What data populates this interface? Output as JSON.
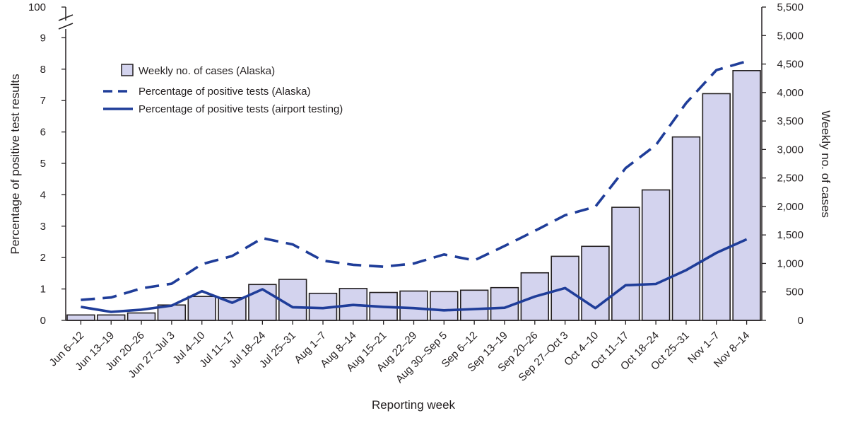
{
  "chart_data": {
    "type": "bar",
    "categories": [
      "Jun 6–12",
      "Jun 13–19",
      "Jun 20–26",
      "Jun 27–Jul 3",
      "Jul 4–10",
      "Jul 11–17",
      "Jul 18–24",
      "Jul 25–31",
      "Aug 1–7",
      "Aug 8–14",
      "Aug 15–21",
      "Aug 22–29",
      "Aug 30–Sep 5",
      "Sep 6–12",
      "Sep 13–19",
      "Sep 20–26",
      "Sep 27–Oct 3",
      "Oct 4–10",
      "Oct 11–17",
      "Oct 18–24",
      "Oct 25–31",
      "Nov 1–7",
      "Nov 8–14"
    ],
    "series": [
      {
        "name": "Weekly no. of cases (Alaska)",
        "type": "bar",
        "axis": "right",
        "color": "#d3d3ee",
        "values": [
          95,
          95,
          130,
          270,
          420,
          400,
          630,
          720,
          475,
          560,
          490,
          515,
          505,
          530,
          575,
          835,
          1125,
          1300,
          1985,
          2290,
          3220,
          3980,
          4385
        ]
      },
      {
        "name": "Percentage of positive tests (Alaska)",
        "type": "line",
        "style": "dashed",
        "axis": "left",
        "color": "#1f3d99",
        "values": [
          0.65,
          0.73,
          1.02,
          1.17,
          1.79,
          2.05,
          2.62,
          2.42,
          1.9,
          1.77,
          1.71,
          1.81,
          2.1,
          1.91,
          2.37,
          2.85,
          3.35,
          3.62,
          4.85,
          5.58,
          6.92,
          7.97,
          8.25
        ]
      },
      {
        "name": "Percentage of positive tests (airport testing)",
        "type": "line",
        "style": "solid",
        "axis": "left",
        "color": "#1f3d99",
        "values": [
          0.43,
          0.27,
          0.34,
          0.47,
          0.93,
          0.56,
          0.99,
          0.42,
          0.39,
          0.49,
          0.43,
          0.39,
          0.32,
          0.36,
          0.4,
          0.76,
          1.03,
          0.39,
          1.12,
          1.16,
          1.6,
          2.15,
          2.58
        ]
      }
    ],
    "xlabel": "Reporting week",
    "ylabel": "Percentage of positive test results",
    "y2label": "Weekly no. of cases",
    "ylim": [
      0,
      9
    ],
    "y_axis_break_top": 100,
    "yticks": [
      0,
      1,
      2,
      3,
      4,
      5,
      6,
      7,
      8,
      9,
      100
    ],
    "y2lim": [
      0,
      5500
    ],
    "y2ticks": [
      0,
      500,
      1000,
      1500,
      2000,
      2500,
      3000,
      3500,
      4000,
      4500,
      5000,
      5500
    ],
    "y2tick_labels": [
      "0",
      "500",
      "1,000",
      "1,500",
      "2,000",
      "2,500",
      "3,000",
      "3,500",
      "4,000",
      "4,500",
      "5,000",
      "5,500"
    ],
    "grid": false,
    "legend_position": "top-left"
  }
}
